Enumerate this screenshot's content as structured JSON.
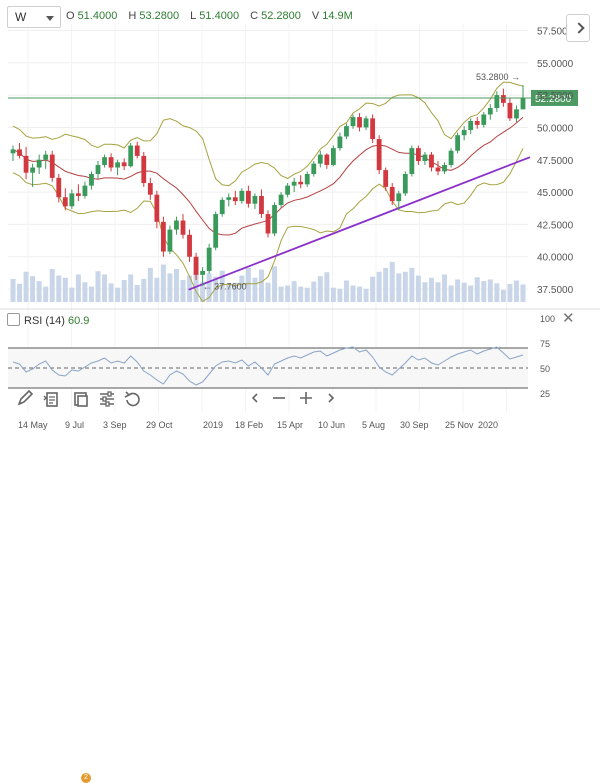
{
  "header": {
    "interval_label": "W",
    "ohlc": [
      {
        "key": "O",
        "value": "51.4000"
      },
      {
        "key": "H",
        "value": "53.2800"
      },
      {
        "key": "L",
        "value": "51.4000"
      },
      {
        "key": "C",
        "value": "52.2800"
      },
      {
        "key": "V",
        "value": "14.9M"
      }
    ]
  },
  "rsi": {
    "label": "RSI (14)",
    "value": "60.9"
  },
  "colors": {
    "bull": "#3a9a5b",
    "bear": "#d2383f",
    "bollinger": "#a7a23f",
    "ma": "#b44040",
    "trendline": "#8b2fc9",
    "price_line": "#4c9a62",
    "rsi_line": "#8aa4c8",
    "volume": "#c9d6e9"
  },
  "toolbar": {
    "icons": [
      "pencil-icon",
      "document-icon",
      "layers-icon",
      "sliders-icon",
      "undo-icon",
      "chevron-left-icon",
      "minus-icon",
      "plus-icon",
      "chevron-right-icon"
    ],
    "badge": "2"
  },
  "chart_data": {
    "type": "candlestick",
    "price_axis": {
      "ticks": [
        "57.5000",
        "55.0000",
        "52.5000",
        "50.0000",
        "47.5000",
        "45.0000",
        "42.5000",
        "40.0000",
        "37.5000"
      ],
      "range": [
        36.5,
        58.0
      ],
      "last_price_label": "52.2800"
    },
    "time_axis": {
      "labels": [
        "14 May",
        "9 Jul",
        "3 Sep",
        "29 Oct",
        "2019",
        "18 Feb",
        "15 Apr",
        "10 Jun",
        "5 Aug",
        "30 Sep",
        "25 Nov",
        "2020"
      ]
    },
    "annotations": {
      "high_label": "53.2800",
      "low_label": "37.7600",
      "high_value": 53.28,
      "low_value": 37.76
    },
    "candles": [
      [
        48.0,
        48.6,
        47.4,
        48.3
      ],
      [
        48.3,
        48.8,
        47.6,
        47.8
      ],
      [
        47.8,
        48.5,
        46.0,
        46.5
      ],
      [
        46.5,
        47.2,
        45.4,
        46.9
      ],
      [
        46.9,
        47.9,
        46.4,
        47.5
      ],
      [
        47.5,
        48.2,
        46.8,
        47.9
      ],
      [
        47.9,
        48.2,
        45.8,
        46.1
      ],
      [
        46.1,
        46.4,
        44.2,
        44.6
      ],
      [
        44.6,
        45.3,
        43.6,
        43.9
      ],
      [
        43.9,
        45.2,
        43.7,
        44.9
      ],
      [
        44.9,
        45.6,
        44.3,
        44.7
      ],
      [
        44.7,
        45.8,
        44.5,
        45.5
      ],
      [
        45.5,
        46.6,
        45.2,
        46.4
      ],
      [
        46.4,
        47.4,
        46.0,
        47.1
      ],
      [
        47.1,
        47.9,
        46.9,
        47.7
      ],
      [
        47.7,
        48.0,
        46.6,
        46.9
      ],
      [
        46.9,
        47.5,
        46.3,
        47.3
      ],
      [
        47.3,
        47.6,
        46.7,
        47.0
      ],
      [
        47.0,
        48.8,
        46.9,
        48.6
      ],
      [
        48.6,
        48.9,
        47.6,
        47.8
      ],
      [
        47.8,
        48.1,
        45.4,
        45.7
      ],
      [
        45.7,
        46.1,
        44.4,
        44.8
      ],
      [
        44.8,
        45.1,
        42.2,
        42.7
      ],
      [
        42.7,
        43.1,
        40.0,
        40.4
      ],
      [
        40.4,
        42.4,
        40.2,
        42.1
      ],
      [
        42.1,
        43.1,
        41.7,
        42.8
      ],
      [
        42.8,
        43.3,
        41.4,
        41.7
      ],
      [
        41.7,
        42.1,
        39.6,
        40.0
      ],
      [
        40.0,
        40.3,
        38.2,
        38.6
      ],
      [
        38.6,
        39.2,
        37.76,
        38.9
      ],
      [
        38.9,
        41.0,
        38.7,
        40.7
      ],
      [
        40.7,
        43.5,
        40.5,
        43.3
      ],
      [
        43.3,
        44.6,
        43.1,
        44.4
      ],
      [
        44.4,
        44.9,
        43.9,
        44.6
      ],
      [
        44.6,
        45.1,
        44.0,
        44.3
      ],
      [
        44.3,
        45.3,
        44.1,
        45.1
      ],
      [
        45.1,
        45.5,
        43.8,
        44.1
      ],
      [
        44.1,
        44.9,
        43.7,
        44.7
      ],
      [
        44.7,
        45.2,
        43.0,
        43.3
      ],
      [
        43.3,
        43.6,
        41.5,
        41.8
      ],
      [
        41.8,
        44.2,
        41.6,
        44.0
      ],
      [
        44.0,
        45.0,
        43.8,
        44.8
      ],
      [
        44.8,
        45.7,
        44.6,
        45.5
      ],
      [
        45.5,
        46.1,
        45.0,
        45.8
      ],
      [
        45.8,
        46.3,
        45.3,
        45.6
      ],
      [
        45.6,
        46.6,
        45.4,
        46.4
      ],
      [
        46.4,
        47.4,
        46.2,
        47.2
      ],
      [
        47.2,
        48.2,
        46.9,
        47.9
      ],
      [
        47.9,
        48.0,
        46.8,
        47.1
      ],
      [
        47.1,
        48.6,
        47.0,
        48.4
      ],
      [
        48.4,
        49.6,
        48.2,
        49.3
      ],
      [
        49.3,
        50.3,
        49.1,
        50.1
      ],
      [
        50.1,
        51.0,
        49.9,
        50.8
      ],
      [
        50.8,
        51.1,
        49.7,
        50.0
      ],
      [
        50.0,
        50.9,
        49.8,
        50.7
      ],
      [
        50.7,
        51.0,
        48.8,
        49.1
      ],
      [
        49.1,
        49.4,
        46.4,
        46.7
      ],
      [
        46.7,
        46.9,
        45.1,
        45.4
      ],
      [
        45.4,
        45.7,
        44.0,
        44.3
      ],
      [
        44.3,
        45.1,
        43.6,
        44.9
      ],
      [
        44.9,
        46.6,
        44.7,
        46.4
      ],
      [
        46.4,
        48.6,
        46.2,
        48.4
      ],
      [
        48.4,
        48.6,
        47.1,
        47.4
      ],
      [
        47.4,
        48.1,
        47.1,
        47.9
      ],
      [
        47.9,
        48.1,
        46.6,
        46.9
      ],
      [
        46.9,
        47.4,
        46.3,
        46.6
      ],
      [
        46.6,
        47.3,
        46.4,
        47.1
      ],
      [
        47.1,
        48.4,
        46.9,
        48.2
      ],
      [
        48.2,
        49.6,
        48.0,
        49.4
      ],
      [
        49.4,
        50.1,
        49.0,
        49.8
      ],
      [
        49.8,
        50.7,
        49.5,
        50.5
      ],
      [
        50.5,
        50.8,
        49.9,
        50.2
      ],
      [
        50.2,
        51.2,
        50.0,
        51.0
      ],
      [
        51.0,
        51.8,
        50.6,
        51.5
      ],
      [
        51.5,
        52.8,
        51.2,
        52.5
      ],
      [
        52.5,
        53.0,
        51.6,
        51.9
      ],
      [
        51.9,
        52.3,
        50.5,
        50.7
      ],
      [
        50.7,
        51.7,
        50.4,
        51.4
      ],
      [
        51.4,
        53.28,
        51.4,
        52.28
      ]
    ],
    "volume": [
      0.42,
      0.33,
      0.55,
      0.47,
      0.38,
      0.28,
      0.6,
      0.48,
      0.44,
      0.26,
      0.5,
      0.36,
      0.28,
      0.56,
      0.5,
      0.34,
      0.26,
      0.4,
      0.5,
      0.31,
      0.42,
      0.62,
      0.44,
      0.68,
      0.52,
      0.6,
      0.4,
      0.48,
      0.72,
      0.36,
      0.52,
      0.46,
      0.57,
      0.31,
      0.35,
      0.48,
      0.62,
      0.44,
      0.59,
      0.35,
      0.65,
      0.28,
      0.3,
      0.38,
      0.28,
      0.26,
      0.37,
      0.47,
      0.54,
      0.26,
      0.24,
      0.39,
      0.3,
      0.28,
      0.24,
      0.46,
      0.55,
      0.62,
      0.73,
      0.52,
      0.55,
      0.62,
      0.48,
      0.36,
      0.44,
      0.36,
      0.5,
      0.3,
      0.41,
      0.35,
      0.3,
      0.45,
      0.38,
      0.41,
      0.34,
      0.22,
      0.33,
      0.39,
      0.32
    ],
    "rsi": {
      "ticks": [
        "100",
        "75",
        "50",
        "25"
      ],
      "range": [
        10,
        100
      ],
      "levels": [
        70,
        50,
        30
      ],
      "values": [
        56,
        54,
        46,
        49,
        54,
        57,
        48,
        43,
        42,
        48,
        47,
        51,
        55,
        57,
        60,
        55,
        57,
        55,
        62,
        56,
        47,
        43,
        38,
        34,
        43,
        47,
        44,
        37,
        33,
        36,
        44,
        52,
        56,
        57,
        55,
        58,
        52,
        56,
        50,
        43,
        54,
        57,
        60,
        62,
        60,
        63,
        66,
        67,
        62,
        65,
        68,
        70,
        71,
        66,
        68,
        61,
        51,
        46,
        43,
        49,
        55,
        62,
        58,
        60,
        55,
        53,
        57,
        61,
        64,
        66,
        68,
        64,
        67,
        69,
        71,
        65,
        59,
        61,
        63
      ]
    }
  }
}
